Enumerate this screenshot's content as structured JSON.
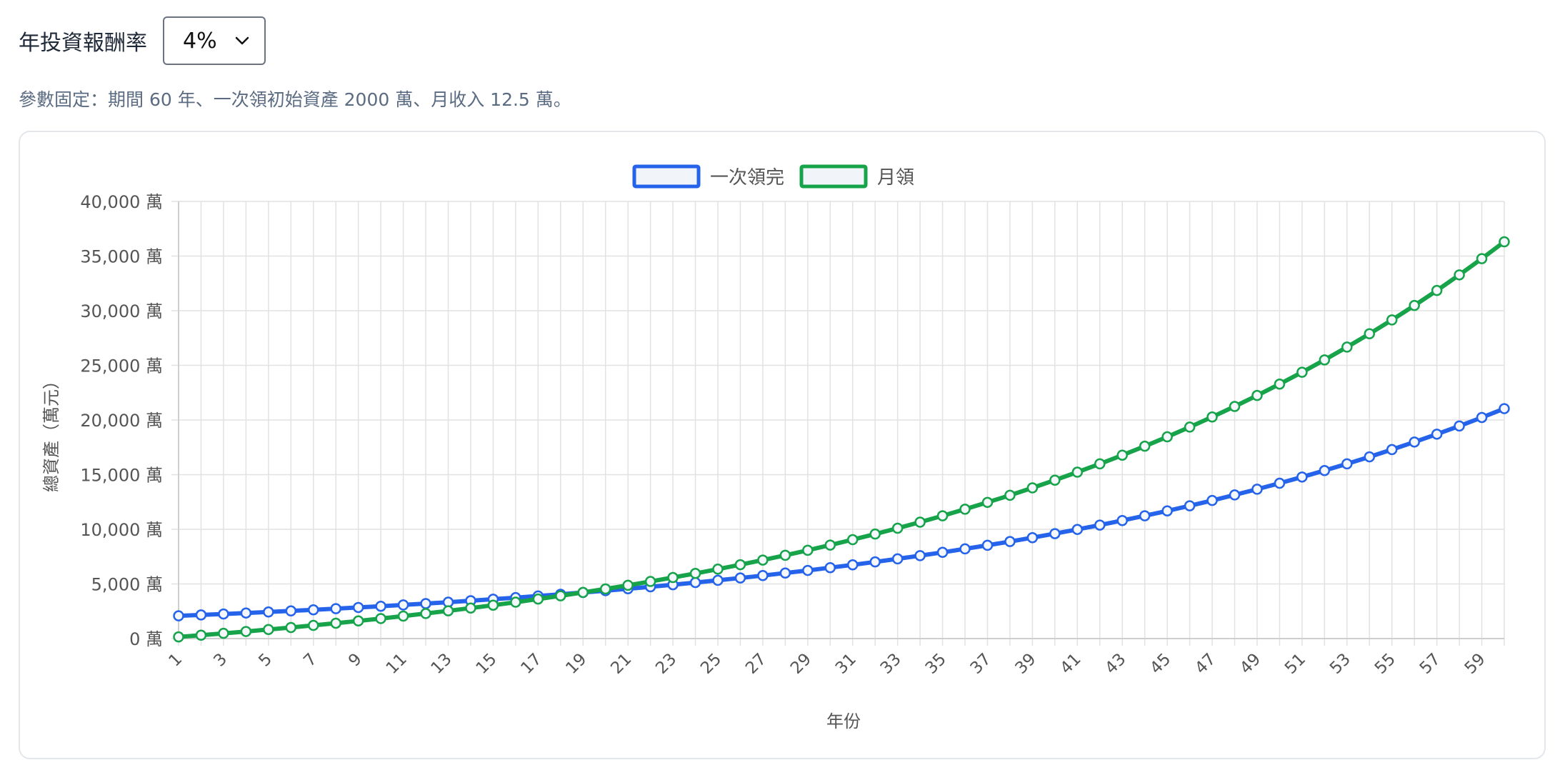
{
  "controls": {
    "rate_label": "年投資報酬率",
    "rate_value": "4%",
    "note": "參數固定：期間 60 年、一次領初始資產 2000 萬、月收入 12.5 萬。"
  },
  "colors": {
    "lump_sum": "#2563eb",
    "monthly": "#16a34a",
    "grid": "#e2e2e2",
    "axis_text": "#555555"
  },
  "chart_data": {
    "type": "line",
    "title": "",
    "xlabel": "年份",
    "ylabel": "總資產（萬元）",
    "y_tick_suffix": " 萬",
    "ylim": [
      0,
      40000
    ],
    "y_ticks": [
      "0 萬",
      "5,000 萬",
      "10,000 萬",
      "15,000 萬",
      "20,000 萬",
      "25,000 萬",
      "30,000 萬",
      "35,000 萬",
      "40,000 萬"
    ],
    "x": [
      1,
      2,
      3,
      4,
      5,
      6,
      7,
      8,
      9,
      10,
      11,
      12,
      13,
      14,
      15,
      16,
      17,
      18,
      19,
      20,
      21,
      22,
      23,
      24,
      25,
      26,
      27,
      28,
      29,
      30,
      31,
      32,
      33,
      34,
      35,
      36,
      37,
      38,
      39,
      40,
      41,
      42,
      43,
      44,
      45,
      46,
      47,
      48,
      49,
      50,
      51,
      52,
      53,
      54,
      55,
      56,
      57,
      58,
      59,
      60
    ],
    "x_tick_labels": [
      "1",
      "3",
      "5",
      "7",
      "9",
      "11",
      "13",
      "15",
      "17",
      "19",
      "21",
      "23",
      "25",
      "27",
      "29",
      "31",
      "33",
      "35",
      "37",
      "39",
      "41",
      "43",
      "45",
      "47",
      "49",
      "51",
      "53",
      "55",
      "57",
      "59"
    ],
    "grid": true,
    "legend_position": "top-center",
    "series": [
      {
        "name": "一次領完",
        "values": [
          2080,
          2163,
          2250,
          2340,
          2433,
          2531,
          2632,
          2737,
          2847,
          2960,
          3079,
          3202,
          3330,
          3463,
          3602,
          3746,
          3896,
          4052,
          4214,
          4382,
          4558,
          4740,
          4929,
          5127,
          5332,
          5545,
          5767,
          5997,
          6237,
          6487,
          6746,
          7016,
          7297,
          7589,
          7892,
          8208,
          8536,
          8878,
          9233,
          9602,
          9987,
          10386,
          10802,
          11234,
          11683,
          12150,
          12636,
          13142,
          13667,
          14214,
          14783,
          15374,
          15989,
          16629,
          17294,
          17986,
          18705,
          19453,
          20231,
          21041
        ]
      },
      {
        "name": "月領",
        "values": [
          153,
          312,
          478,
          649,
          828,
          1013,
          1206,
          1407,
          1616,
          1833,
          2058,
          2293,
          2537,
          2791,
          3055,
          3330,
          3616,
          3913,
          4222,
          4543,
          4877,
          5225,
          5586,
          5962,
          6353,
          6760,
          7183,
          7622,
          8080,
          8555,
          9050,
          9564,
          10099,
          10655,
          11234,
          11836,
          12462,
          13113,
          13790,
          14494,
          15226,
          15988,
          16780,
          17604,
          18460,
          19351,
          20278,
          21242,
          22244,
          23287,
          24371,
          25499,
          26671,
          27891,
          29160,
          30479,
          31852,
          33279,
          34763,
          36307
        ]
      }
    ]
  }
}
